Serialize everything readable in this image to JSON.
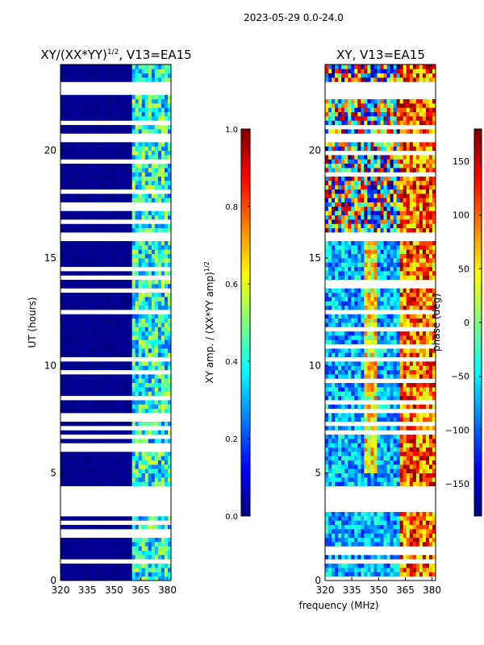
{
  "figure_title": "2023-05-29 0.0-24.0",
  "colors": {
    "jet": [
      "#00007f",
      "#0000ff",
      "#007fff",
      "#00ffff",
      "#7fff7f",
      "#ffff00",
      "#ff7f00",
      "#ff0000",
      "#7f0000"
    ],
    "frame": "#000000",
    "gap": "#ffffff"
  },
  "chart_data": [
    {
      "type": "heatmap",
      "title_main": "XY/(XX*YY)",
      "title_exponent": "1/2",
      "title_suffix": ", V13=EA15",
      "xlabel": "",
      "ylabel": "UT (hours)",
      "xlim": [
        320,
        382
      ],
      "ylim": [
        0,
        24
      ],
      "xticks": [
        320,
        335,
        350,
        365,
        380
      ],
      "yticks": [
        0,
        5,
        10,
        15,
        20
      ],
      "colorbar": {
        "label_main": "XY amp. / (XX*YY amp)",
        "label_exponent": "1/2",
        "range": [
          0.0,
          1.0
        ],
        "ticks": [
          "0.0",
          "0.2",
          "0.4",
          "0.6",
          "0.8",
          "1.0"
        ],
        "tick_values": [
          0.0,
          0.2,
          0.4,
          0.6,
          0.8,
          1.0
        ]
      },
      "baseline_value": 0.0,
      "active_band_mhz": [
        360,
        382
      ],
      "active_value_range": [
        0.2,
        0.6
      ],
      "data_gaps_hours": [
        [
          3.2,
          4.3
        ],
        [
          22.6,
          23.2
        ],
        [
          15.9,
          16.2
        ],
        [
          0.8,
          1.0
        ],
        [
          20.7,
          20.9
        ],
        [
          12.4,
          12.5
        ],
        [
          10.2,
          10.3
        ]
      ]
    },
    {
      "type": "heatmap",
      "title_main": "XY, V13=EA15",
      "xlabel": "frequency (MHz)",
      "ylabel": "",
      "xlim": [
        320,
        382
      ],
      "ylim": [
        0,
        24
      ],
      "xticks": [
        320,
        335,
        350,
        365,
        380
      ],
      "yticks": [
        0,
        5,
        10,
        15,
        20
      ],
      "colorbar": {
        "label_main": "phase (deg)",
        "range": [
          -180,
          180
        ],
        "ticks": [
          "−150",
          "−100",
          "−50",
          "0",
          "50",
          "100",
          "150"
        ],
        "tick_values": [
          -150,
          -100,
          -50,
          0,
          50,
          100,
          150
        ]
      },
      "phase_front_center_mhz": 345,
      "high_phase_band_mhz": [
        362,
        382
      ],
      "data_gaps_hours": [
        [
          3.2,
          4.3
        ],
        [
          22.6,
          23.2
        ],
        [
          15.9,
          16.2
        ],
        [
          0.8,
          1.0
        ],
        [
          20.7,
          20.9
        ],
        [
          12.4,
          12.5
        ],
        [
          10.2,
          10.3
        ]
      ]
    }
  ]
}
